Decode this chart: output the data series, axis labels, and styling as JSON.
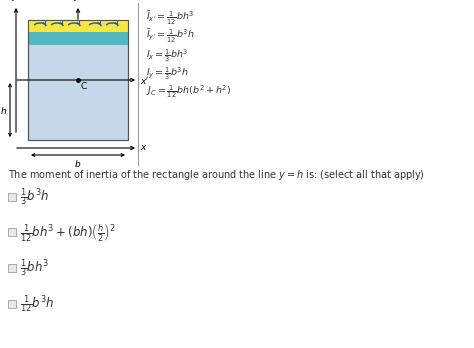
{
  "background_color": "#ffffff",
  "question_text": "The moment of inertia of the rectangle around the line $y = h$ is: (select all that apply)",
  "options": [
    "$\\frac{1}{3}b^3h$",
    "$\\frac{1}{12}bh^3 + (bh)\\left(\\frac{h}{2}\\right)^2$",
    "$\\frac{1}{3}bh^3$",
    "$\\frac{1}{12}b^3h$"
  ],
  "formulas": [
    "$\\bar{I}_{x'} = \\frac{1}{12}bh^3$",
    "$\\bar{I}_{y'} = \\frac{1}{12}b^3h$",
    "$I_x = \\frac{1}{3}bh^3$",
    "$I_y = \\frac{1}{3}b^3h$",
    "$J_C = \\frac{1}{12}bh(b^2 + h^2)$"
  ],
  "rect_blue": "#c5d8ea",
  "rect_yellow": "#f5e642",
  "rect_cyan": "#50b8c0",
  "arrow_blue": "#2255bb",
  "separator_color": "#999999",
  "formula_color": "#333333",
  "text_color": "#333333",
  "checkbox_edge": "#aaaaaa",
  "checkbox_face": "#e8e8e8"
}
